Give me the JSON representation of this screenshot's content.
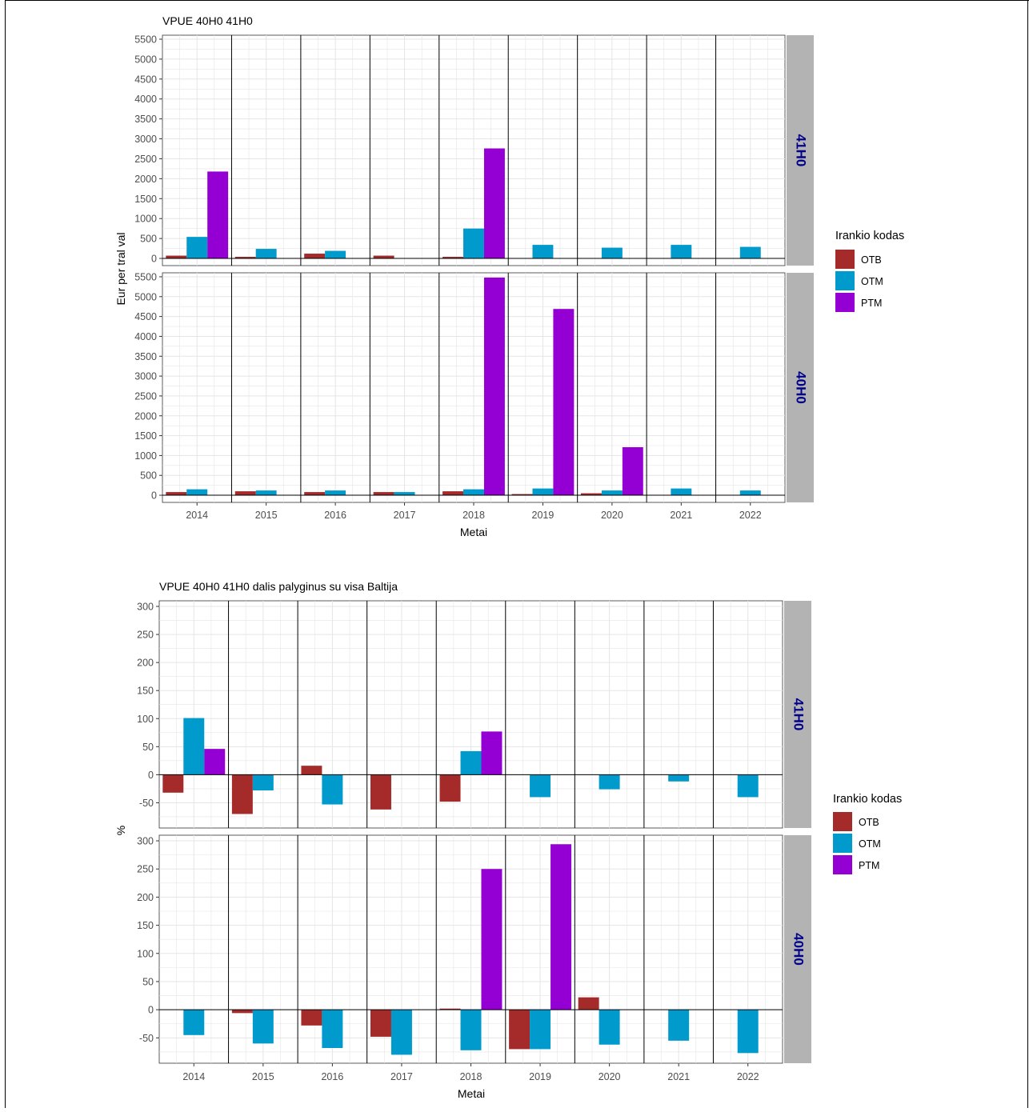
{
  "colors": {
    "OTB": "#a52a2a",
    "OTM": "#009acd",
    "PTM": "#9400d3",
    "strip_bg": "#b3b3b3",
    "strip_text": "#00008b",
    "grid": "#e5e5e5"
  },
  "legend": {
    "title": "Irankio kodas",
    "items": [
      {
        "code": "OTB",
        "label": "OTB"
      },
      {
        "code": "OTM",
        "label": "OTM"
      },
      {
        "code": "PTM",
        "label": "PTM"
      }
    ]
  },
  "chart_data": [
    {
      "type": "bar",
      "title": "VPUE 40H0 41H0",
      "xlabel": "Metai",
      "ylabel": "Eur per tral val",
      "ylim": [
        -180,
        5600
      ],
      "yticks": [
        0,
        500,
        1000,
        1500,
        2000,
        2500,
        3000,
        3500,
        4000,
        4500,
        5000,
        5500
      ],
      "categories": [
        "2014",
        "2015",
        "2016",
        "2017",
        "2018",
        "2019",
        "2020",
        "2021",
        "2022"
      ],
      "legend_position": "right",
      "grid": true,
      "facets": [
        {
          "label": "41H0",
          "series": [
            {
              "name": "OTB",
              "values": [
                70,
                40,
                120,
                70,
                40,
                null,
                null,
                null,
                null
              ]
            },
            {
              "name": "OTM",
              "values": [
                540,
                240,
                190,
                null,
                750,
                340,
                270,
                340,
                290
              ]
            },
            {
              "name": "PTM",
              "values": [
                2180,
                null,
                null,
                null,
                2760,
                null,
                null,
                null,
                null
              ]
            }
          ]
        },
        {
          "label": "40H0",
          "series": [
            {
              "name": "OTB",
              "values": [
                80,
                100,
                80,
                80,
                100,
                30,
                50,
                null,
                null
              ]
            },
            {
              "name": "OTM",
              "values": [
                150,
                120,
                120,
                80,
                150,
                170,
                120,
                170,
                120
              ]
            },
            {
              "name": "PTM",
              "values": [
                null,
                null,
                null,
                null,
                5480,
                4690,
                1210,
                null,
                null
              ]
            }
          ]
        }
      ]
    },
    {
      "type": "bar",
      "title": "VPUE 40H0 41H0 dalis palyginus su visa Baltija",
      "xlabel": "Metai",
      "ylabel": "%",
      "ylim": [
        -95,
        310
      ],
      "yticks": [
        -50,
        0,
        50,
        100,
        150,
        200,
        250,
        300
      ],
      "categories": [
        "2014",
        "2015",
        "2016",
        "2017",
        "2018",
        "2019",
        "2020",
        "2021",
        "2022"
      ],
      "legend_position": "right",
      "grid": true,
      "facets": [
        {
          "label": "41H0",
          "series": [
            {
              "name": "OTB",
              "values": [
                -32,
                -70,
                16,
                -62,
                -48,
                null,
                null,
                null,
                null
              ]
            },
            {
              "name": "OTM",
              "values": [
                101,
                -28,
                -53,
                null,
                42,
                -40,
                -26,
                -12,
                -40
              ]
            },
            {
              "name": "PTM",
              "values": [
                46,
                null,
                null,
                null,
                77,
                null,
                null,
                null,
                null
              ]
            }
          ]
        },
        {
          "label": "40H0",
          "series": [
            {
              "name": "OTB",
              "values": [
                null,
                -6,
                -28,
                -48,
                2,
                -70,
                22,
                null,
                null
              ]
            },
            {
              "name": "OTM",
              "values": [
                -45,
                -60,
                -68,
                -80,
                -72,
                -70,
                -62,
                -55,
                -77
              ]
            },
            {
              "name": "PTM",
              "values": [
                null,
                null,
                null,
                null,
                250,
                294,
                null,
                null,
                null
              ]
            }
          ]
        }
      ]
    }
  ]
}
